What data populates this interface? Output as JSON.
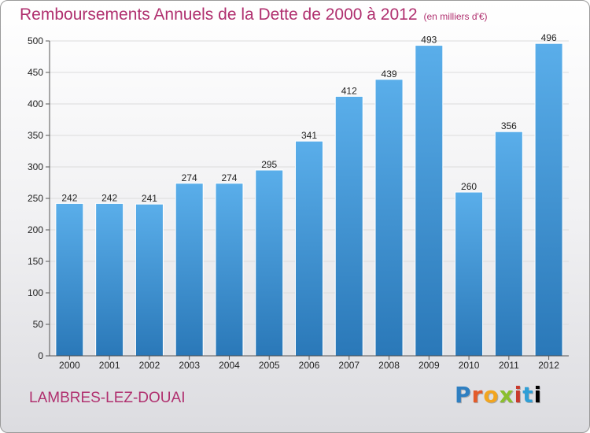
{
  "header": {
    "title": "Remboursements Annuels de la Dette de 2000 à 2012",
    "unit": "(en milliers d'€)"
  },
  "footer": {
    "city": "LAMBRES-LEZ-DOUAI",
    "logo": [
      "P",
      "r",
      "o",
      "x",
      "i",
      "t",
      "i"
    ]
  },
  "chart_data": {
    "type": "bar",
    "title": "Remboursements Annuels de la Dette de 2000 à 2012",
    "subtitle": "(en milliers d'€)",
    "xlabel": "",
    "ylabel": "",
    "categories": [
      "2000",
      "2001",
      "2002",
      "2003",
      "2004",
      "2005",
      "2006",
      "2007",
      "2008",
      "2009",
      "2010",
      "2011",
      "2012"
    ],
    "values": [
      242,
      242,
      241,
      274,
      274,
      295,
      341,
      412,
      439,
      493,
      260,
      356,
      496
    ],
    "ylim": [
      0,
      500
    ],
    "yticks": [
      0,
      50,
      100,
      150,
      200,
      250,
      300,
      350,
      400,
      450,
      500
    ],
    "grid": true,
    "colors": {
      "bar_top": "#5aaeea",
      "bar_bottom": "#2a78b8",
      "grid": "#e0e0e0"
    }
  }
}
